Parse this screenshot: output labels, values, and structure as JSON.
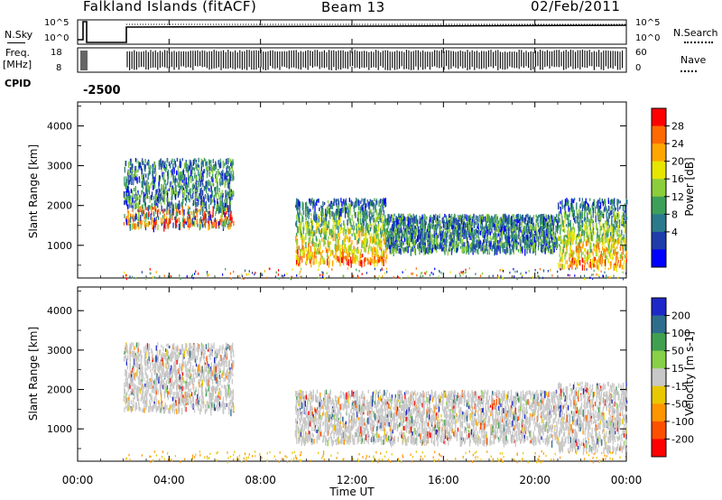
{
  "header": {
    "station": "Falkland Islands (fitACF)",
    "beam": "Beam 13",
    "date": "02/Feb/2011"
  },
  "left_labels": {
    "nsky": "N.Sky",
    "freq": "Freq.",
    "freq_unit": "[MHz]",
    "cpid": "CPID",
    "cpid_value": "-2500"
  },
  "right_labels": {
    "nsearch": "N.Search",
    "nave": "Nave"
  },
  "noise_axis": {
    "top": "10^5",
    "bottom": "10^0"
  },
  "noise_axis_right": {
    "top": "10^5",
    "bottom": "10^0"
  },
  "freq_axis": {
    "top": "18",
    "bottom": "8"
  },
  "nave_axis": {
    "top": "60",
    "bottom": "0"
  },
  "power_colorbar": {
    "label": "Power [dB]",
    "ticks": [
      "28",
      "24",
      "20",
      "16",
      "12",
      "8",
      "4"
    ],
    "colors": [
      "#ff0000",
      "#ff6a00",
      "#ffa600",
      "#e6e600",
      "#8ccd3c",
      "#3ca05a",
      "#2a7a8c",
      "#1e3caa",
      "#0000ff"
    ]
  },
  "velocity_colorbar": {
    "label": "Velocity [m s-1]",
    "ticks": [
      "200",
      "100",
      "50",
      "15",
      "-15",
      "-50",
      "-100",
      "-200"
    ],
    "colors": [
      "#1e28c8",
      "#2e6e8c",
      "#40a050",
      "#88d048",
      "#c8c8c8",
      "#e8c800",
      "#ff9600",
      "#ff5000",
      "#ff0000"
    ]
  },
  "time_axis": {
    "label": "Time UT",
    "ticks": [
      "00:00",
      "04:00",
      "08:00",
      "12:00",
      "16:00",
      "20:00",
      "00:00"
    ]
  },
  "chart_data": [
    {
      "type": "heatmap",
      "name_shown": "Power [dB]",
      "ylabel": "Slant Range [km]",
      "xlabel": "Time UT",
      "ylim": [
        180,
        4600
      ],
      "y_ticks": [
        1000,
        2000,
        3000,
        4000
      ],
      "xlim_hours": [
        0,
        24
      ],
      "colorbar_range_db": [
        0,
        30
      ],
      "echo_regions": [
        {
          "t_start": 2.0,
          "t_end": 6.8,
          "r_low": 1500,
          "r_high": 3200,
          "dominant": "2-12 dB, 16-24 dB near 1800 km"
        },
        {
          "t_start": 9.5,
          "t_end": 13.5,
          "r_low": 600,
          "r_high": 2200,
          "dominant": "20-28 dB near 800-1200 km"
        },
        {
          "t_start": 13.5,
          "t_end": 21.0,
          "r_low": 900,
          "r_high": 1800,
          "dominant": "2-12 dB"
        },
        {
          "t_start": 21.0,
          "t_end": 24.0,
          "r_low": 500,
          "r_high": 2200,
          "dominant": "16-28 dB"
        }
      ]
    },
    {
      "type": "heatmap",
      "name_shown": "Velocity [m s-1]",
      "ylabel": "Slant Range [km]",
      "xlabel": "Time UT",
      "ylim": [
        180,
        4600
      ],
      "y_ticks": [
        1000,
        2000,
        3000,
        4000
      ],
      "xlim_hours": [
        0,
        24
      ],
      "colorbar_range_ms": [
        -250,
        250
      ],
      "echo_regions": [
        {
          "t_start": 2.0,
          "t_end": 6.8,
          "r_low": 1500,
          "r_high": 3200,
          "dominant": "-15 to 15 m/s (grey)"
        },
        {
          "t_start": 9.5,
          "t_end": 21.0,
          "r_low": 700,
          "r_high": 2000,
          "dominant": "-15 to 15 m/s (grey)"
        },
        {
          "t_start": 21.0,
          "t_end": 24.0,
          "r_low": 500,
          "r_high": 2200,
          "dominant": "-15 to 15 m/s (grey)"
        }
      ]
    }
  ]
}
